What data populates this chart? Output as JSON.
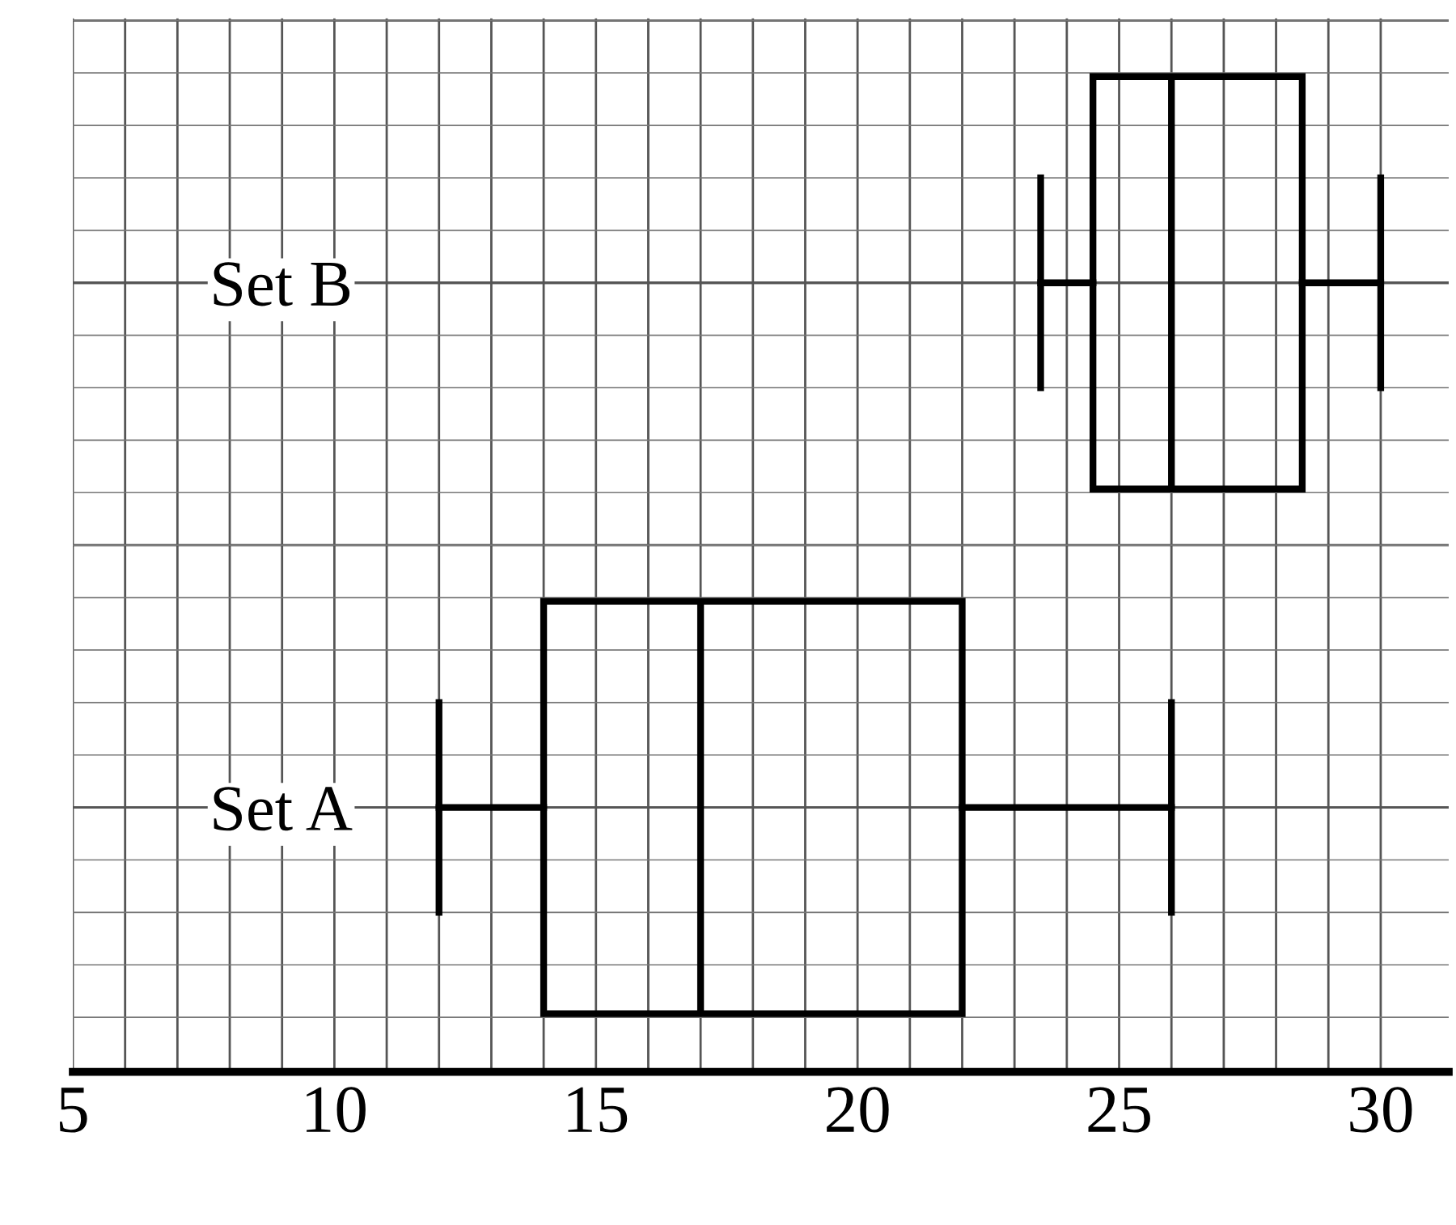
{
  "chart_data": {
    "type": "box",
    "orientation": "horizontal",
    "categories": [
      "Set B",
      "Set A"
    ],
    "boxes": [
      {
        "low": 23.5,
        "q1": 24.5,
        "median": 26,
        "q3": 28.5,
        "high": 30
      },
      {
        "low": 12,
        "q1": 14,
        "median": 17,
        "q3": 22,
        "high": 26
      }
    ],
    "color": "#000000",
    "xlim": [
      5,
      31.3
    ],
    "xticks": [
      5,
      {
        "value": 6,
        "label": null
      },
      {
        "value": 7,
        "label": null
      },
      {
        "value": 8,
        "label": null
      },
      {
        "value": 9,
        "label": null
      },
      10,
      {
        "value": 11,
        "label": null
      },
      {
        "value": 12,
        "label": null
      },
      {
        "value": 13,
        "label": null
      },
      {
        "value": 14,
        "label": null
      },
      15,
      {
        "value": 16,
        "label": null
      },
      {
        "value": 17,
        "label": null
      },
      {
        "value": 18,
        "label": null
      },
      {
        "value": 19,
        "label": null
      },
      20,
      {
        "value": 21,
        "label": null
      },
      {
        "value": 22,
        "label": null
      },
      {
        "value": 23,
        "label": null
      },
      {
        "value": 24,
        "label": null
      },
      25,
      {
        "value": 26,
        "label": null
      },
      {
        "value": 27,
        "label": null
      },
      {
        "value": 28,
        "label": null
      },
      {
        "value": 29,
        "label": null
      },
      30
    ],
    "tick_labels": "x",
    "grid": true
  }
}
